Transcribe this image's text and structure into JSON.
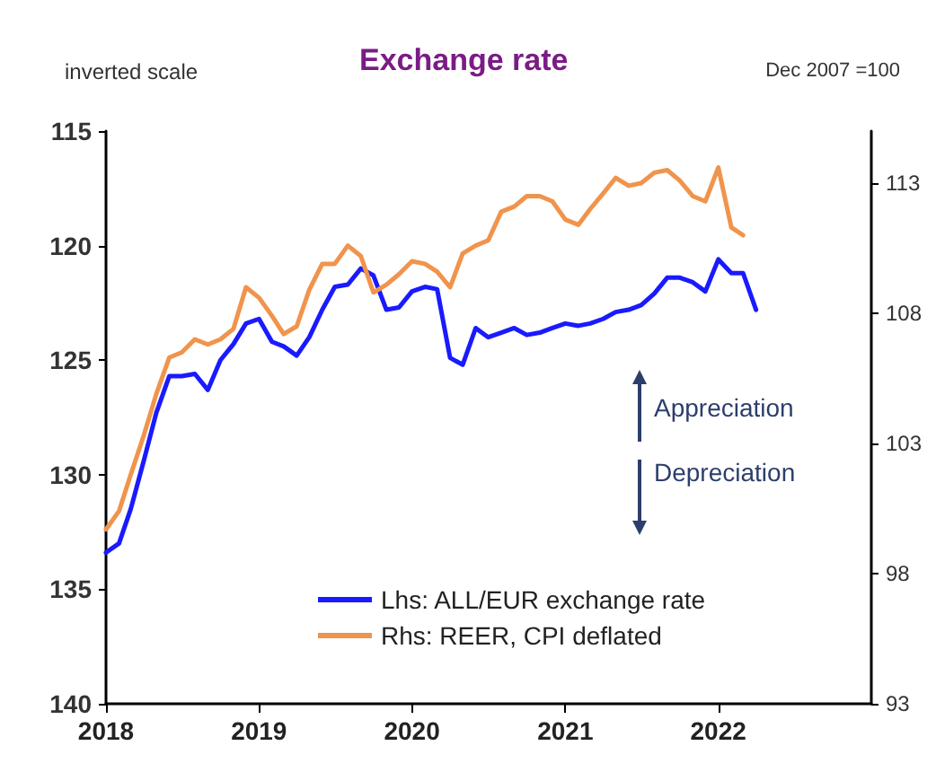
{
  "chart_data": {
    "type": "line",
    "title": "Exchange rate",
    "annotations": [
      "inverted scale",
      "Dec 2007 =100",
      "Appreciation",
      "Depreciation"
    ],
    "x": [
      "2018-01",
      "2018-02",
      "2018-03",
      "2018-04",
      "2018-05",
      "2018-06",
      "2018-07",
      "2018-08",
      "2018-09",
      "2018-10",
      "2018-11",
      "2018-12",
      "2019-01",
      "2019-02",
      "2019-03",
      "2019-04",
      "2019-05",
      "2019-06",
      "2019-07",
      "2019-08",
      "2019-09",
      "2019-10",
      "2019-11",
      "2019-12",
      "2020-01",
      "2020-02",
      "2020-03",
      "2020-04",
      "2020-05",
      "2020-06",
      "2020-07",
      "2020-08",
      "2020-09",
      "2020-10",
      "2020-11",
      "2020-12",
      "2021-01",
      "2021-02",
      "2021-03",
      "2021-04",
      "2021-05",
      "2021-06",
      "2021-07",
      "2021-08",
      "2021-09",
      "2021-10",
      "2021-11",
      "2021-12",
      "2022-01",
      "2022-02",
      "2022-03",
      "2022-04"
    ],
    "series": [
      {
        "name": "Lhs: ALL/EUR exchange rate",
        "color": "#1a1aff",
        "values": [
          133.4,
          133.0,
          131.5,
          129.4,
          127.3,
          125.7,
          125.7,
          125.6,
          126.3,
          125.0,
          124.3,
          123.4,
          123.2,
          124.2,
          124.4,
          124.8,
          124.0,
          122.8,
          121.8,
          121.7,
          121.0,
          121.3,
          122.8,
          122.7,
          122.0,
          121.8,
          121.9,
          124.9,
          125.2,
          123.6,
          124.0,
          123.8,
          123.6,
          123.9,
          123.8,
          123.6,
          123.4,
          123.5,
          123.4,
          123.2,
          122.9,
          122.8,
          122.6,
          122.1,
          121.4,
          121.4,
          121.6,
          122.0,
          120.6,
          121.2,
          121.2,
          122.8
        ]
      },
      {
        "name": "Rhs: REER, CPI deflated",
        "color": "#f0944d",
        "axis": "y2",
        "values": [
          99.7,
          100.4,
          101.8,
          103.3,
          104.9,
          106.3,
          106.5,
          107.0,
          106.8,
          107.0,
          107.4,
          109.0,
          108.6,
          107.9,
          107.2,
          107.5,
          108.9,
          109.9,
          109.9,
          110.6,
          110.2,
          108.8,
          109.1,
          109.5,
          110.0,
          109.9,
          109.6,
          109.0,
          110.3,
          110.6,
          110.8,
          111.9,
          112.1,
          112.5,
          112.5,
          112.3,
          111.6,
          111.4,
          112.0,
          112.6,
          113.2,
          112.9,
          113.0,
          113.4,
          113.5,
          113.1,
          112.5,
          112.3,
          113.6,
          111.3,
          111.0,
          null
        ]
      }
    ],
    "xlim": [
      "2018-01",
      "2023-01"
    ],
    "xticks": [
      {
        "value": "2018-01",
        "label": "2018"
      },
      {
        "value": "2019-01",
        "label": "2019"
      },
      {
        "value": "2020-01",
        "label": "2020"
      },
      {
        "value": "2021-01",
        "label": "2021"
      },
      {
        "value": "2022-01",
        "label": "2022"
      }
    ],
    "ylim": [
      140,
      115
    ],
    "yticks": [
      115,
      120,
      125,
      130,
      135,
      140
    ],
    "y2lim": [
      93,
      115
    ],
    "y2ticks": [
      93,
      98,
      103,
      108,
      113
    ],
    "legend": "bottom",
    "grid": false,
    "marker": "none",
    "line_style": "solid"
  }
}
